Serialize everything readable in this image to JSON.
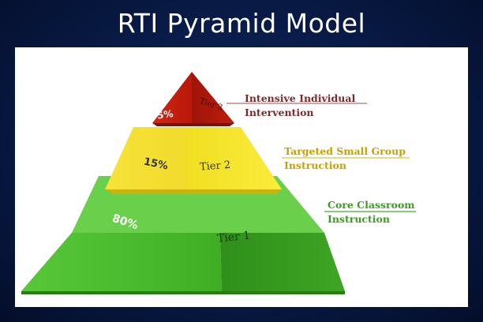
{
  "title": "RTI Pyramid Model",
  "tiers": [
    {
      "id": "tier3",
      "name": "Tier 3",
      "percent": "5%",
      "description_line1": "Intensive Individual",
      "description_line2": "Intervention",
      "color": "#c41c0a"
    },
    {
      "id": "tier2",
      "name": "Tier 2",
      "percent": "15%",
      "description_line1": "Targeted Small Group",
      "description_line2": "Instruction",
      "color": "#f2e11c"
    },
    {
      "id": "tier1",
      "name": "Tier 1",
      "percent": "80%",
      "description_line1": "Core Classroom",
      "description_line2": "Instruction",
      "color": "#46b02a"
    }
  ]
}
